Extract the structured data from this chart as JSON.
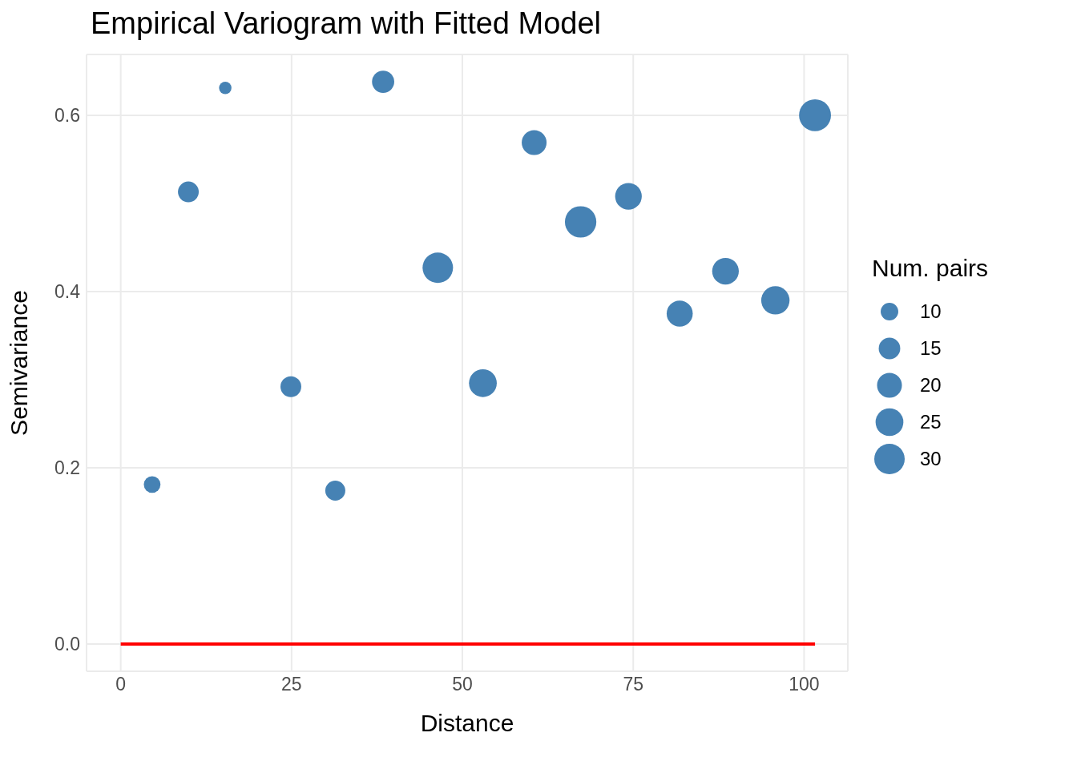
{
  "chart_data": {
    "type": "bubble",
    "title": "Empirical Variogram with Fitted Model",
    "xlabel": "Distance",
    "ylabel": "Semivariance",
    "legend_title": "Num. pairs",
    "grid": true,
    "xlim": [
      -5,
      106.4
    ],
    "xticks": [
      0,
      25,
      50,
      75,
      100
    ],
    "ylim": [
      -0.031,
      0.669
    ],
    "yticks": [
      {
        "value": 0,
        "label": "0.0"
      },
      0.2,
      0.4,
      0.6
    ],
    "size_legend": [
      10,
      15,
      20,
      25,
      30
    ],
    "series": [
      {
        "color": "#4682b4",
        "x": [
          4.6,
          9.9,
          15.3,
          24.9,
          31.4,
          38.4,
          46.4,
          53.0,
          60.5,
          67.3,
          74.3,
          81.8,
          88.5,
          95.8,
          101.6
        ],
        "values": [
          0.181,
          0.513,
          0.631,
          0.292,
          0.174,
          0.638,
          0.427,
          0.296,
          0.569,
          0.479,
          0.508,
          0.375,
          0.423,
          0.39,
          0.6
        ],
        "sizes": [
          9,
          14,
          5,
          14,
          13,
          16,
          30,
          25,
          20,
          32,
          23,
          22,
          23,
          26,
          33
        ]
      },
      {
        "type": "line",
        "color": "#ff0000",
        "x": [
          0,
          101.6
        ],
        "values": [
          0,
          0
        ]
      }
    ]
  }
}
